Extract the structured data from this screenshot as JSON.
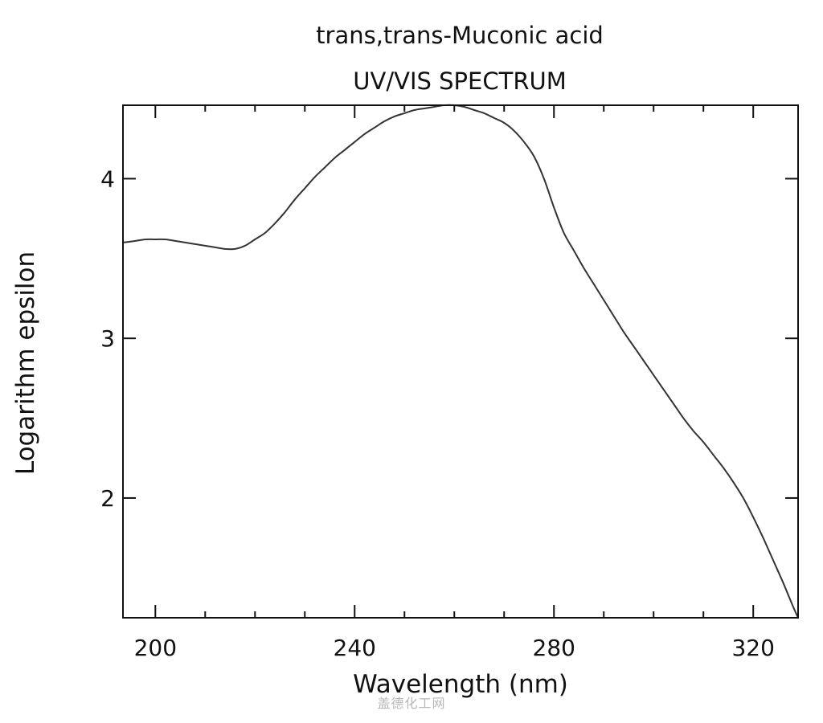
{
  "watermark": "盖德化工网",
  "chart_data": {
    "type": "line",
    "title": "trans,trans-Muconic acid",
    "subtitle": "UV/VIS SPECTRUM",
    "xlabel": "Wavelength (nm)",
    "ylabel": "Logarithm epsilon",
    "xlim": [
      193.5,
      329
    ],
    "ylim": [
      1.25,
      4.46
    ],
    "x_ticks": [
      200,
      240,
      280,
      320
    ],
    "x_minor_ticks": [
      210,
      220,
      230,
      250,
      260,
      270,
      290,
      300,
      310
    ],
    "y_ticks": [
      2,
      3,
      4
    ],
    "grid": false,
    "legend": "none",
    "line_color": "#333333",
    "series": [
      {
        "x": [
          193.5,
          196,
          198,
          200,
          202,
          204,
          206,
          208,
          210,
          212,
          214,
          216,
          218,
          220,
          222,
          224,
          226,
          228,
          230,
          232,
          234,
          236,
          238,
          240,
          242,
          244,
          246,
          248,
          250,
          252,
          254,
          256,
          258,
          260,
          262,
          264,
          266,
          268,
          270,
          272,
          274,
          276,
          278,
          280,
          282,
          284,
          286,
          288,
          290,
          292,
          294,
          296,
          298,
          300,
          302,
          304,
          306,
          308,
          310,
          312,
          314,
          316,
          318,
          320,
          322,
          324,
          326,
          328,
          329
        ],
        "y": [
          3.6,
          3.61,
          3.62,
          3.62,
          3.62,
          3.61,
          3.6,
          3.59,
          3.58,
          3.57,
          3.56,
          3.56,
          3.58,
          3.62,
          3.66,
          3.72,
          3.79,
          3.87,
          3.94,
          4.01,
          4.07,
          4.13,
          4.18,
          4.23,
          4.28,
          4.32,
          4.36,
          4.39,
          4.41,
          4.43,
          4.44,
          4.45,
          4.46,
          4.46,
          4.45,
          4.43,
          4.41,
          4.38,
          4.35,
          4.3,
          4.23,
          4.14,
          4.0,
          3.82,
          3.66,
          3.55,
          3.44,
          3.34,
          3.24,
          3.14,
          3.04,
          2.95,
          2.86,
          2.77,
          2.68,
          2.59,
          2.5,
          2.42,
          2.35,
          2.27,
          2.19,
          2.1,
          2.0,
          1.88,
          1.75,
          1.61,
          1.47,
          1.32,
          1.25
        ]
      }
    ]
  }
}
